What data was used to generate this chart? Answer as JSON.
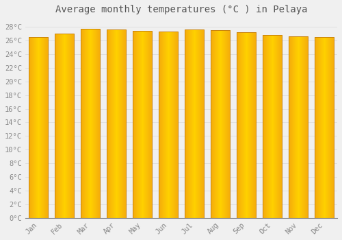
{
  "title": "Average monthly temperatures (°C ) in Pelaya",
  "months": [
    "Jan",
    "Feb",
    "Mar",
    "Apr",
    "May",
    "Jun",
    "Jul",
    "Aug",
    "Sep",
    "Oct",
    "Nov",
    "Dec"
  ],
  "values": [
    26.5,
    27.0,
    27.7,
    27.6,
    27.4,
    27.3,
    27.6,
    27.5,
    27.2,
    26.8,
    26.6,
    26.5
  ],
  "bar_color_center": "#FFD000",
  "bar_color_edge": "#F5A800",
  "bar_border_color": "#C8820A",
  "background_color": "#F0F0F0",
  "grid_color": "#D8D8D8",
  "ylim": [
    0,
    29
  ],
  "ytick_step": 2,
  "title_fontsize": 10,
  "tick_fontsize": 7.5,
  "tick_font_family": "monospace"
}
